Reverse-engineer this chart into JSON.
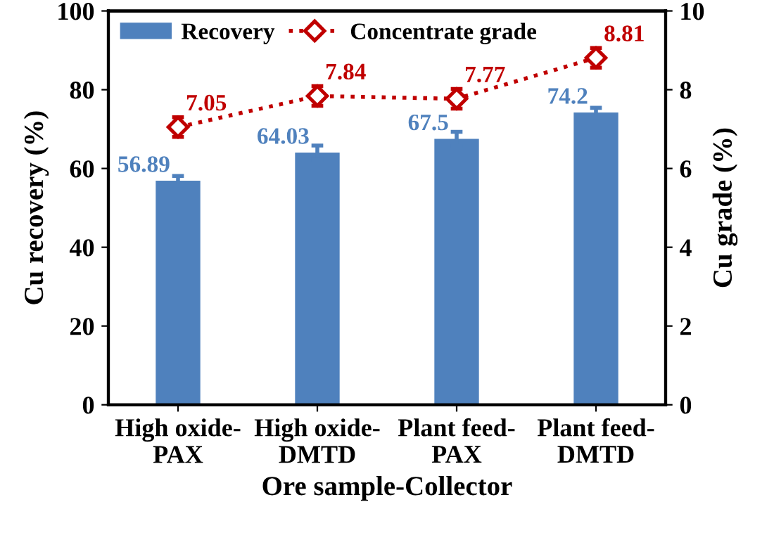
{
  "chart_data": {
    "type": "bar",
    "categories": [
      "High oxide-\nPAX",
      "High oxide-\nDMTD",
      "Plant feed-\nPAX",
      "Plant feed-\nDMTD"
    ],
    "xlabel": "Ore sample-Collector",
    "ylabel": "Cu recovery (%)",
    "y2label": "Cu grade (%)",
    "ylim": [
      0,
      100
    ],
    "yticks": [
      0,
      20,
      40,
      60,
      80,
      100
    ],
    "y2lim": [
      0,
      10
    ],
    "y2ticks": [
      0,
      2,
      4,
      6,
      8,
      10
    ],
    "series": [
      {
        "name": "Recovery",
        "color": "#4f81bd",
        "values": [
          56.89,
          64.03,
          67.5,
          74.2
        ],
        "errors": [
          1.2,
          1.8,
          1.8,
          1.2
        ]
      },
      {
        "name": "Concentrate grade",
        "type": "line",
        "axis": "y2",
        "color": "#c00000",
        "values": [
          7.05,
          7.84,
          7.77,
          8.81
        ],
        "errors": [
          0.25,
          0.25,
          0.25,
          0.25
        ],
        "marker": "diamond",
        "line_style": "dotted"
      }
    ],
    "data_labels": true,
    "legend": "top left",
    "grid": false
  }
}
